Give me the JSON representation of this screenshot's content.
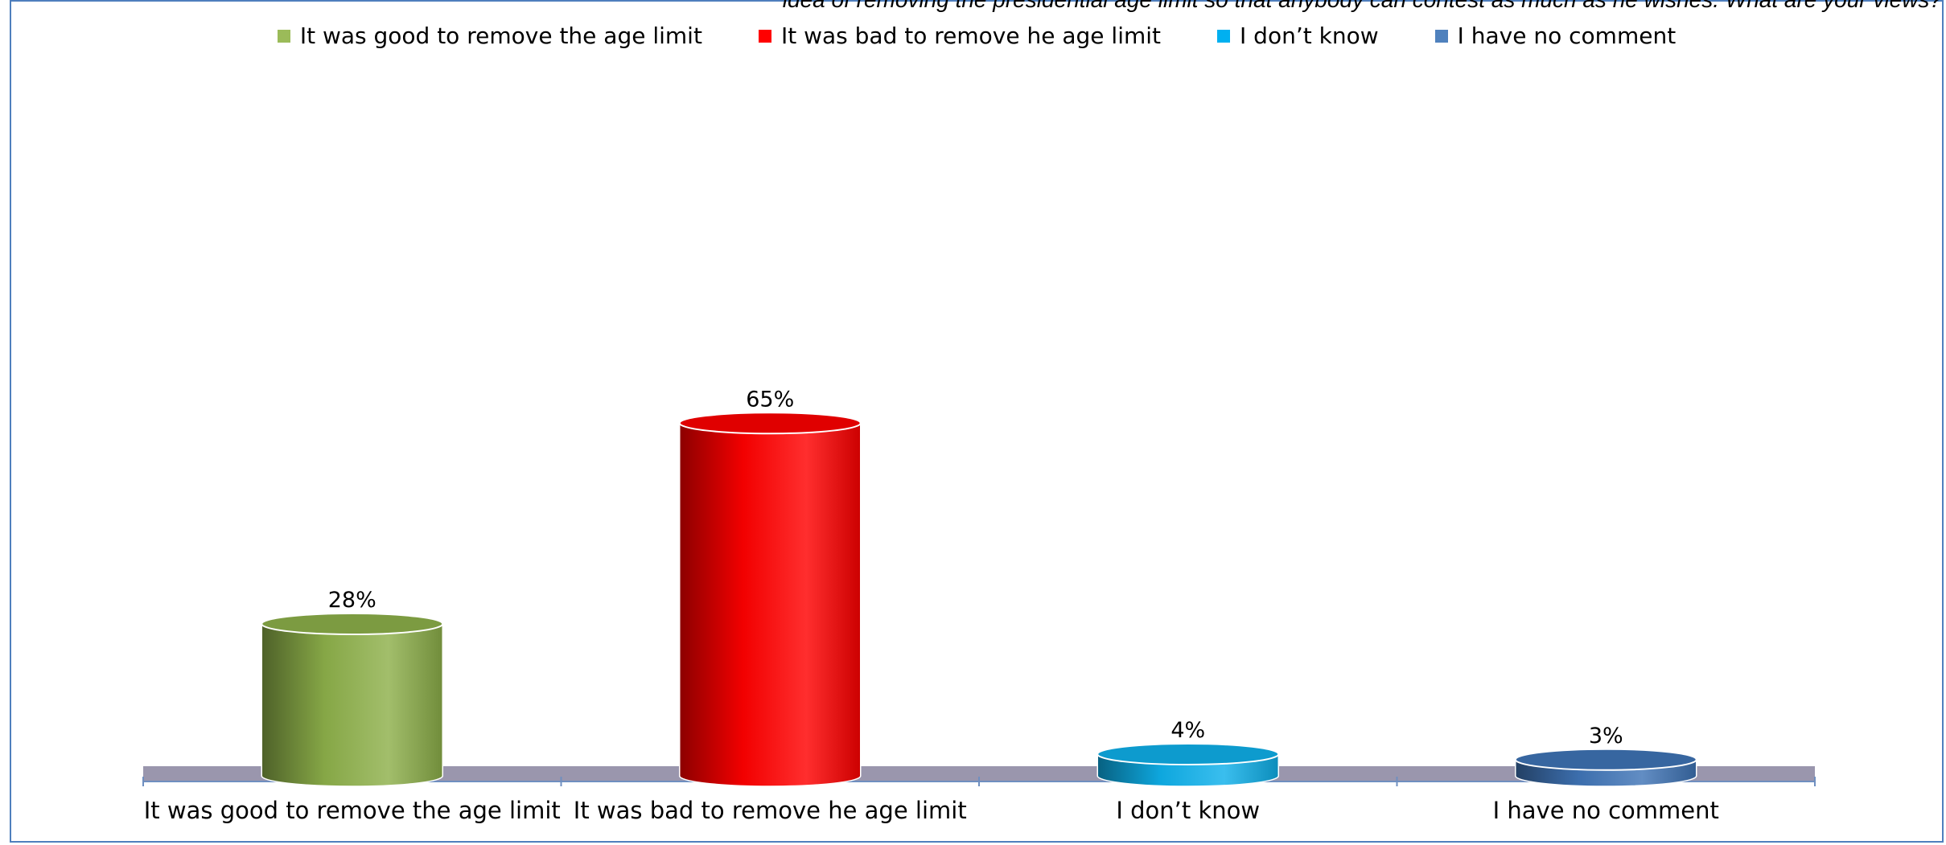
{
  "header": {
    "clipped_title": "idea of removing the presidential age limit so that anybody can contest as much as he wishes. What are your views?"
  },
  "chart_data": {
    "type": "bar",
    "style": "3d-cylinder",
    "categories": [
      "It was good to remove the age limit",
      "It was bad to remove he age limit",
      "I don’t know",
      "I have no comment"
    ],
    "values": [
      28,
      65,
      4,
      3
    ],
    "value_labels": [
      "28%",
      "65%",
      "4%",
      "3%"
    ],
    "unit": "%",
    "colors": [
      "#8db04a",
      "#ff0000",
      "#0fb0ea",
      "#3f74b6"
    ],
    "ylim": [
      0,
      70
    ],
    "grid": false,
    "legend_position": "top",
    "legend": [
      {
        "label": "It was good to remove the age limit",
        "color": "#9bbb59"
      },
      {
        "label": "It was bad to remove he age limit",
        "color": "#ff0000"
      },
      {
        "label": "I don’t know",
        "color": "#00b0f0"
      },
      {
        "label": "I have no comment",
        "color": "#4f81bd"
      }
    ]
  }
}
